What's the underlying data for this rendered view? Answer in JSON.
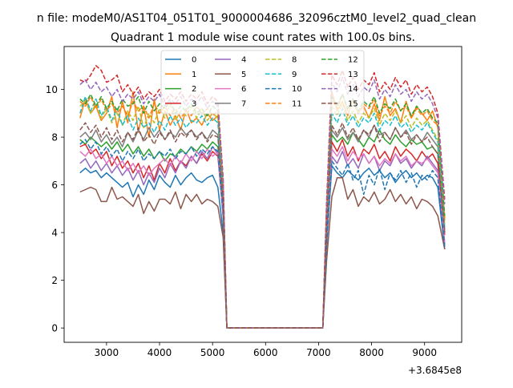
{
  "chart_data": {
    "type": "line",
    "suptitle": "n file: modeM0/AS1T04_051T01_9000004686_32096cztM0_level2_quad_clean",
    "title": "Quadrant 1 module wise count rates with 100.0s bins.",
    "xlabel": "",
    "ylabel": "",
    "x_offset_label": "+3.6845e8",
    "xlim": [
      2200,
      9700
    ],
    "ylim": [
      -0.6,
      11.8
    ],
    "xticks": [
      3000,
      4000,
      5000,
      6000,
      7000,
      8000,
      9000
    ],
    "yticks": [
      0,
      2,
      4,
      6,
      8,
      10
    ],
    "xtick_labels": [
      "3000",
      "4000",
      "5000",
      "6000",
      "7000",
      "8000",
      "9000"
    ],
    "ytick_labels": [
      "0",
      "2",
      "4",
      "6",
      "8",
      "10"
    ],
    "legend": {
      "placement": "top-center",
      "columns": 4
    },
    "gap_start": 5270,
    "gap_end": 7080,
    "x": {
      "seg1": [
        2500,
        2600,
        2700,
        2800,
        2900,
        3000,
        3100,
        3200,
        3300,
        3400,
        3500,
        3600,
        3700,
        3800,
        3900,
        4000,
        4100,
        4200,
        4300,
        4400,
        4500,
        4600,
        4700,
        4800,
        4900,
        5000,
        5100,
        5200,
        5270
      ],
      "seg2": [
        7080,
        7150,
        7250,
        7350,
        7450,
        7550,
        7650,
        7750,
        7850,
        7950,
        8050,
        8150,
        8250,
        8350,
        8450,
        8550,
        8650,
        8750,
        8850,
        8950,
        9050,
        9150,
        9250,
        9380
      ]
    },
    "series": [
      {
        "name": "0",
        "color": "#1f77b4",
        "dash": "solid",
        "seg1": [
          6.5,
          6.7,
          6.5,
          6.6,
          6.3,
          6.5,
          6.3,
          6.1,
          5.9,
          6.1,
          5.5,
          6.0,
          5.6,
          6.2,
          5.8,
          6.4,
          6.1,
          5.9,
          6.4,
          6.0,
          6.3,
          6.5,
          6.2,
          6.1,
          6.3,
          6.4,
          5.9,
          4.0,
          0
        ],
        "seg2": [
          0,
          3.4,
          6.8,
          6.5,
          6.3,
          6.6,
          6.4,
          6.2,
          6.5,
          6.7,
          6.4,
          6.6,
          6.3,
          6.5,
          6.1,
          6.4,
          6.6,
          6.3,
          6.5,
          6.2,
          6.4,
          6.3,
          5.9,
          3.3
        ]
      },
      {
        "name": "1",
        "color": "#ff7f0e",
        "dash": "solid",
        "seg1": [
          8.8,
          9.6,
          9.0,
          9.3,
          8.7,
          9.0,
          9.7,
          8.4,
          9.5,
          8.6,
          9.9,
          8.2,
          9.3,
          8.0,
          9.6,
          8.3,
          9.1,
          8.5,
          8.9,
          8.3,
          9.2,
          8.6,
          8.8,
          8.5,
          9.0,
          8.7,
          8.9,
          5.9,
          0
        ],
        "seg2": [
          0,
          4.8,
          9.9,
          9.1,
          9.5,
          8.9,
          9.6,
          9.0,
          9.3,
          8.8,
          9.4,
          8.7,
          9.7,
          8.9,
          9.2,
          8.6,
          9.5,
          8.8,
          9.3,
          9.0,
          8.7,
          9.1,
          8.4,
          4.5
        ]
      },
      {
        "name": "2",
        "color": "#2ca02c",
        "dash": "solid",
        "seg1": [
          7.9,
          7.7,
          8.0,
          7.8,
          7.6,
          7.8,
          7.5,
          7.8,
          7.4,
          7.7,
          7.3,
          7.6,
          7.2,
          7.5,
          7.1,
          7.4,
          7.0,
          7.3,
          7.2,
          7.5,
          7.3,
          7.6,
          7.4,
          7.7,
          7.5,
          7.8,
          7.6,
          5.1,
          0
        ],
        "seg2": [
          0,
          4.0,
          8.1,
          7.8,
          8.0,
          7.7,
          8.2,
          7.9,
          7.6,
          8.0,
          7.8,
          8.3,
          7.9,
          7.7,
          8.1,
          7.8,
          7.6,
          7.9,
          7.7,
          7.8,
          7.5,
          7.6,
          7.3,
          4.0
        ]
      },
      {
        "name": "3",
        "color": "#d62728",
        "dash": "solid",
        "seg1": [
          7.6,
          7.7,
          7.3,
          7.5,
          7.1,
          7.4,
          6.8,
          7.2,
          6.7,
          7.0,
          6.5,
          6.9,
          6.3,
          6.8,
          6.2,
          6.9,
          6.5,
          7.1,
          6.6,
          7.0,
          6.8,
          7.2,
          6.9,
          7.3,
          7.0,
          7.4,
          7.2,
          4.8,
          0
        ],
        "seg2": [
          0,
          3.9,
          7.8,
          7.4,
          7.9,
          7.2,
          7.6,
          7.0,
          7.5,
          7.3,
          7.7,
          7.1,
          7.4,
          7.0,
          7.6,
          7.2,
          7.5,
          7.3,
          7.0,
          7.4,
          7.1,
          7.3,
          6.9,
          3.9
        ]
      },
      {
        "name": "4",
        "color": "#9467bd",
        "dash": "solid",
        "seg1": [
          6.9,
          7.1,
          6.7,
          7.0,
          6.6,
          6.9,
          6.5,
          6.8,
          6.4,
          6.7,
          6.2,
          6.6,
          6.0,
          6.5,
          6.1,
          6.7,
          6.3,
          6.9,
          6.5,
          7.0,
          6.7,
          7.2,
          6.9,
          7.4,
          7.1,
          7.6,
          7.3,
          4.6,
          0
        ],
        "seg2": [
          0,
          3.6,
          7.2,
          6.9,
          7.4,
          6.8,
          7.1,
          6.7,
          7.3,
          6.9,
          7.2,
          6.6,
          7.0,
          6.8,
          7.3,
          6.9,
          7.1,
          6.7,
          7.0,
          6.8,
          7.2,
          6.9,
          6.6,
          3.5
        ]
      },
      {
        "name": "5",
        "color": "#8c564b",
        "dash": "solid",
        "seg1": [
          5.7,
          5.8,
          5.9,
          5.8,
          5.3,
          5.3,
          5.9,
          5.4,
          5.5,
          5.3,
          5.1,
          5.6,
          4.8,
          5.3,
          4.9,
          5.4,
          5.4,
          5.2,
          5.7,
          5.0,
          5.6,
          5.3,
          5.6,
          5.2,
          5.4,
          5.3,
          5.1,
          3.8,
          0
        ],
        "seg2": [
          0,
          2.8,
          5.5,
          6.3,
          6.3,
          5.4,
          5.8,
          5.1,
          5.5,
          5.3,
          5.7,
          5.2,
          5.4,
          5.8,
          5.3,
          5.6,
          5.2,
          5.5,
          5.0,
          5.4,
          5.3,
          5.1,
          4.7,
          3.3
        ]
      },
      {
        "name": "6",
        "color": "#e377c2",
        "dash": "solid",
        "seg1": [
          7.4,
          7.2,
          7.5,
          7.1,
          7.3,
          6.9,
          7.2,
          6.8,
          7.0,
          6.6,
          6.9,
          6.5,
          6.8,
          6.4,
          6.7,
          6.9,
          7.1,
          6.8,
          7.2,
          6.9,
          7.3,
          7.0,
          7.4,
          7.1,
          7.5,
          7.2,
          7.4,
          4.9,
          0
        ],
        "seg2": [
          0,
          3.7,
          7.5,
          7.2,
          7.6,
          7.0,
          7.4,
          7.1,
          7.3,
          6.9,
          7.2,
          6.8,
          7.1,
          6.9,
          7.3,
          7.0,
          7.2,
          6.8,
          7.0,
          6.9,
          7.1,
          6.8,
          6.5,
          3.6
        ]
      },
      {
        "name": "7",
        "color": "#7f7f7f",
        "dash": "solid",
        "seg1": [
          8.0,
          8.2,
          7.9,
          8.3,
          7.8,
          8.1,
          7.7,
          8.0,
          7.6,
          8.2,
          7.8,
          8.3,
          7.9,
          8.4,
          8.0,
          8.3,
          7.9,
          8.2,
          8.0,
          8.4,
          8.1,
          8.3,
          8.0,
          8.2,
          7.9,
          8.3,
          8.1,
          5.3,
          0
        ],
        "seg2": [
          0,
          4.1,
          8.3,
          8.0,
          8.4,
          7.9,
          8.2,
          7.8,
          8.3,
          8.0,
          8.5,
          8.1,
          8.2,
          7.9,
          8.4,
          8.0,
          8.3,
          7.9,
          8.1,
          7.8,
          8.2,
          7.9,
          7.6,
          4.1
        ]
      },
      {
        "name": "8",
        "color": "#bcbd22",
        "dash": "dashed",
        "seg1": [
          9.3,
          9.5,
          9.0,
          9.4,
          8.8,
          9.2,
          8.6,
          9.0,
          8.5,
          9.1,
          8.7,
          9.3,
          8.4,
          9.0,
          8.6,
          9.2,
          8.8,
          9.4,
          8.7,
          9.1,
          8.9,
          9.3,
          8.8,
          9.2,
          8.7,
          9.0,
          8.8,
          5.8,
          0
        ],
        "seg2": [
          0,
          4.6,
          9.3,
          8.9,
          9.4,
          8.7,
          9.1,
          8.6,
          9.0,
          8.8,
          9.2,
          8.5,
          9.0,
          8.7,
          9.1,
          8.6,
          8.9,
          8.4,
          8.8,
          8.5,
          8.7,
          8.3,
          7.9,
          4.3
        ]
      },
      {
        "name": "9",
        "color": "#17becf",
        "dash": "dashed",
        "seg1": [
          9.0,
          9.7,
          9.1,
          9.6,
          8.9,
          9.3,
          8.7,
          9.2,
          8.5,
          8.9,
          8.3,
          8.8,
          8.4,
          8.6,
          8.2,
          8.7,
          8.3,
          8.9,
          8.5,
          8.8,
          8.4,
          8.7,
          8.6,
          8.9,
          8.5,
          8.8,
          8.6,
          5.7,
          0
        ],
        "seg2": [
          0,
          4.5,
          9.0,
          8.6,
          9.2,
          8.5,
          8.9,
          8.4,
          8.8,
          8.6,
          9.0,
          8.3,
          8.7,
          8.5,
          8.9,
          8.4,
          8.6,
          8.2,
          8.5,
          8.3,
          8.6,
          8.2,
          7.8,
          4.2
        ]
      },
      {
        "name": "10",
        "color": "#1f77b4",
        "dash": "dashed",
        "seg1": [
          7.7,
          7.9,
          7.5,
          7.8,
          7.3,
          7.6,
          7.2,
          7.5,
          7.0,
          7.4,
          7.1,
          7.5,
          7.0,
          7.3,
          7.1,
          7.4,
          7.2,
          7.5,
          7.1,
          7.4,
          7.3,
          7.6,
          7.2,
          7.5,
          7.3,
          7.6,
          7.4,
          4.9,
          0
        ],
        "seg2": [
          0,
          3.5,
          7.0,
          6.7,
          6.4,
          6.9,
          6.2,
          6.6,
          5.6,
          6.4,
          6.0,
          6.7,
          5.8,
          6.5,
          6.2,
          6.6,
          6.1,
          6.5,
          5.9,
          6.4,
          6.2,
          6.6,
          6.3,
          3.4
        ]
      },
      {
        "name": "11",
        "color": "#ff7f0e",
        "dash": "dashed",
        "seg1": [
          9.5,
          9.3,
          9.7,
          9.2,
          9.6,
          9.1,
          9.4,
          9.0,
          9.3,
          8.9,
          9.5,
          9.1,
          9.3,
          8.8,
          9.4,
          9.0,
          9.3,
          8.9,
          9.2,
          8.8,
          9.1,
          8.9,
          9.3,
          9.0,
          9.2,
          8.9,
          9.1,
          6.0,
          0
        ],
        "seg2": [
          0,
          4.9,
          9.6,
          9.2,
          9.8,
          9.1,
          9.5,
          9.0,
          9.4,
          9.2,
          9.6,
          8.9,
          9.3,
          9.0,
          9.5,
          9.1,
          9.3,
          8.8,
          9.2,
          8.9,
          9.1,
          8.7,
          8.5,
          4.6
        ]
      },
      {
        "name": "12",
        "color": "#2ca02c",
        "dash": "dashed",
        "seg1": [
          9.6,
          9.4,
          9.8,
          9.3,
          9.7,
          9.2,
          9.5,
          9.1,
          9.6,
          9.3,
          9.4,
          9.7,
          9.0,
          9.5,
          9.1,
          9.4,
          9.2,
          9.5,
          9.0,
          9.3,
          9.1,
          9.4,
          9.0,
          9.2,
          8.9,
          9.3,
          9.1,
          6.1,
          0
        ],
        "seg2": [
          0,
          5.0,
          9.7,
          9.3,
          9.8,
          9.2,
          9.6,
          9.1,
          9.5,
          9.3,
          9.7,
          9.0,
          9.4,
          9.2,
          9.6,
          9.1,
          9.4,
          8.9,
          9.3,
          9.0,
          9.2,
          8.8,
          8.6,
          4.7
        ]
      },
      {
        "name": "13",
        "color": "#d62728",
        "dash": "dashed",
        "seg1": [
          10.4,
          10.3,
          10.6,
          11.0,
          10.8,
          10.3,
          10.4,
          10.6,
          9.9,
          10.2,
          9.8,
          10.1,
          9.6,
          9.9,
          9.7,
          10.0,
          9.5,
          9.8,
          9.6,
          9.9,
          9.5,
          9.8,
          9.6,
          9.9,
          9.4,
          9.7,
          9.5,
          6.3,
          0
        ],
        "seg2": [
          0,
          5.3,
          10.6,
          10.2,
          10.8,
          10.1,
          10.5,
          10.0,
          10.4,
          10.2,
          10.7,
          9.9,
          10.3,
          10.0,
          10.5,
          10.1,
          10.4,
          9.8,
          10.2,
          9.9,
          10.1,
          9.7,
          9.0,
          5.4
        ]
      },
      {
        "name": "14",
        "color": "#9467bd",
        "dash": "dashed",
        "seg1": [
          10.2,
          10.4,
          10.0,
          10.3,
          9.9,
          10.1,
          9.7,
          10.0,
          9.5,
          9.8,
          9.6,
          9.9,
          9.4,
          9.7,
          9.5,
          9.8,
          9.3,
          9.6,
          9.4,
          9.7,
          9.3,
          9.6,
          9.4,
          9.7,
          9.2,
          9.5,
          9.3,
          6.2,
          0
        ],
        "seg2": [
          0,
          5.1,
          10.3,
          9.9,
          10.5,
          9.8,
          10.2,
          9.7,
          10.1,
          9.9,
          10.4,
          9.6,
          10.0,
          9.7,
          10.2,
          9.8,
          10.0,
          9.5,
          9.9,
          9.6,
          9.8,
          9.4,
          8.8,
          5.2
        ]
      },
      {
        "name": "15",
        "color": "#8c564b",
        "dash": "dashed",
        "seg1": [
          8.3,
          8.6,
          8.2,
          8.5,
          8.0,
          8.4,
          7.9,
          8.3,
          7.8,
          8.2,
          7.9,
          8.4,
          7.8,
          8.1,
          7.7,
          8.2,
          7.9,
          8.3,
          7.8,
          8.2,
          8.0,
          8.3,
          7.9,
          8.2,
          7.8,
          8.1,
          8.0,
          5.3,
          0
        ],
        "seg2": [
          0,
          4.2,
          8.5,
          8.1,
          8.6,
          8.0,
          8.4,
          7.9,
          8.3,
          8.1,
          8.5,
          7.8,
          8.2,
          7.9,
          8.4,
          8.0,
          8.2,
          7.7,
          8.1,
          7.8,
          8.0,
          7.6,
          7.3,
          4.0
        ]
      }
    ]
  }
}
